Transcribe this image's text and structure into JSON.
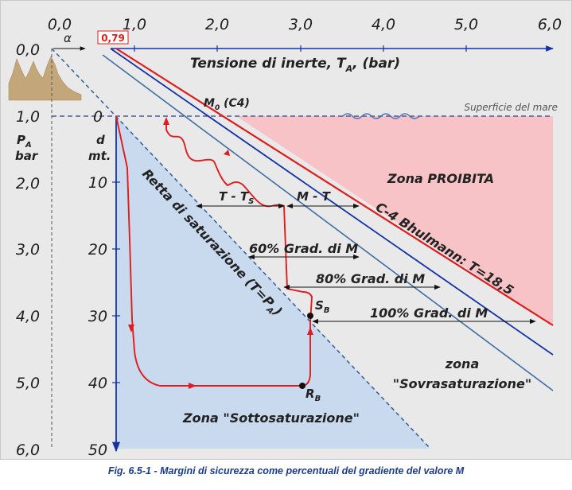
{
  "top_ticks": [
    "0,0",
    "1,0",
    "2,0",
    "3,0",
    "4,0",
    "5,0",
    "6,0"
  ],
  "left_ticks": [
    "0,0",
    "1,0",
    "2,0",
    "3,0",
    "4,0",
    "5,0",
    "6,0"
  ],
  "depth_ticks": [
    "0",
    "10",
    "20",
    "30",
    "40",
    "50"
  ],
  "alpha_label": "α",
  "m0_start_value": "0,79",
  "top_axis_title": {
    "text": "Tensione di inerte, T",
    "sub": "A",
    "suffix": ", (bar)"
  },
  "pa_label": {
    "main": "P",
    "sub": "A",
    "unit": "bar"
  },
  "d_label": {
    "main": "d",
    "unit": "mt."
  },
  "sea_surface": "Superficie del mare",
  "m0_label": {
    "main": "M",
    "sub": "0",
    "suffix": " (C4)"
  },
  "zona_proibita": "Zona  PROIBITA",
  "bhulmann_line": "C-4 Bhulmann: T=18,5",
  "saturation_line": {
    "main": "Retta di saturazione (T=P",
    "sub": "A",
    "suffix": ")"
  },
  "t_minus_ts": {
    "main": "T - T",
    "sub": "S"
  },
  "m_minus_t": "M - T",
  "grad_60": "60% Grad. di M",
  "grad_80": "80% Grad. di M",
  "grad_100": "100% Grad. di M",
  "point_sb": {
    "main": "S",
    "sub": "B"
  },
  "point_rb": {
    "main": "R",
    "sub": "B"
  },
  "zona_sovra": {
    "line1": "zona",
    "line2": "\"Sovrasaturazione\""
  },
  "zona_sotto": "Zona \"Sottosaturazione\"",
  "caption": "Fig. 6.5-1 - Margini di sicurezza come percentuali del gradiente del valore M",
  "colors": {
    "red": "#e01c1c",
    "navy": "#1233a6",
    "steel": "#3f6ea3",
    "blue_zone": "#c9d9ee",
    "pink_zone": "#f7c3c6",
    "terrain": "#c3a77a"
  }
}
